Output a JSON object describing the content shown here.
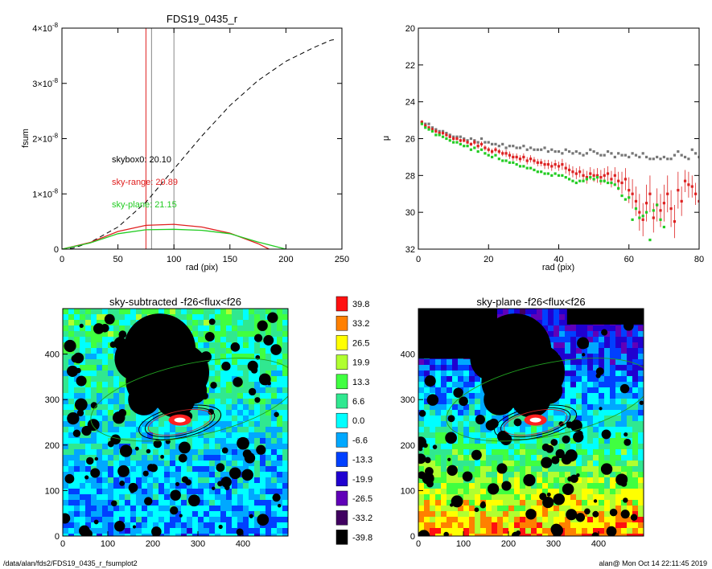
{
  "chart_data": [
    {
      "type": "line",
      "title": "FDS19_0435_r",
      "xlabel": "rad (pix)",
      "ylabel": "fsum",
      "xlim": [
        0,
        250
      ],
      "ylim": [
        0,
        4e-08
      ],
      "xticks": [
        "0",
        "50",
        "100",
        "150",
        "200",
        "250"
      ],
      "yticks": [
        {
          "mant": "0",
          "exp": ""
        },
        {
          "mant": "1×10",
          "exp": "-8"
        },
        {
          "mant": "2×10",
          "exp": "-8"
        },
        {
          "mant": "3×10",
          "exp": "-8"
        },
        {
          "mant": "4×10",
          "exp": "-8"
        }
      ],
      "vlines": [
        {
          "x": 75,
          "color": "#e02020"
        },
        {
          "x": 80,
          "color": "#888888"
        },
        {
          "x": 100,
          "color": "#888888"
        }
      ],
      "annotations": [
        {
          "text": "skybox0: 20.10",
          "color": "#000000"
        },
        {
          "text": "sky-range: 20.89",
          "color": "#e02020"
        },
        {
          "text": "sky-plane: 21.15",
          "color": "#22cc22"
        }
      ],
      "series": [
        {
          "style": "dashed",
          "color": "#000000",
          "x": [
            0,
            10,
            25,
            50,
            75,
            100,
            125,
            150,
            175,
            200,
            225,
            240,
            245
          ],
          "y": [
            0,
            1.8e-10,
            1.2e-09,
            4e-09,
            8.5e-09,
            1.45e-08,
            2.05e-08,
            2.6e-08,
            3.05e-08,
            3.4e-08,
            3.65e-08,
            3.78e-08,
            3.8e-08
          ]
        },
        {
          "style": "solid",
          "color": "#e02020",
          "x": [
            0,
            25,
            50,
            75,
            100,
            125,
            150,
            175,
            185
          ],
          "y": [
            0,
            1.2e-09,
            3.2e-09,
            4.3e-09,
            4.5e-09,
            4e-09,
            2.9e-09,
            1e-09,
            0
          ]
        },
        {
          "style": "solid",
          "color": "#22cc22",
          "x": [
            0,
            25,
            50,
            75,
            100,
            125,
            150,
            175,
            200
          ],
          "y": [
            0,
            1.1e-09,
            2.8e-09,
            3.5e-09,
            3.6e-09,
            3.4e-09,
            2.8e-09,
            1.3e-09,
            0
          ]
        }
      ]
    },
    {
      "type": "scatter",
      "xlabel": "rad (pix)",
      "ylabel": "μ",
      "xlim": [
        0,
        80
      ],
      "ylim": [
        32,
        20
      ],
      "xticks": [
        "0",
        "20",
        "40",
        "60",
        "80"
      ],
      "yticks": [
        "20",
        "22",
        "24",
        "26",
        "28",
        "30",
        "32"
      ],
      "series": [
        {
          "color": "#777777",
          "x": [
            1,
            2,
            3,
            4,
            5,
            6,
            7,
            8,
            9,
            10,
            11,
            12,
            13,
            14,
            15,
            16,
            17,
            18,
            19,
            20,
            21,
            22,
            23,
            24,
            25,
            26,
            27,
            28,
            29,
            30,
            31,
            32,
            33,
            34,
            35,
            36,
            37,
            38,
            39,
            40,
            41,
            42,
            43,
            44,
            45,
            46,
            47,
            48,
            49,
            50,
            51,
            52,
            53,
            54,
            55,
            56,
            57,
            58,
            59,
            60,
            61,
            62,
            63,
            64,
            65,
            66,
            67,
            68,
            69,
            70,
            71,
            72,
            73,
            74,
            75,
            76,
            77,
            78,
            79,
            80
          ],
          "y": [
            25.1,
            25.2,
            25.2,
            25.4,
            25.5,
            25.6,
            25.6,
            25.7,
            25.8,
            25.9,
            25.9,
            25.9,
            26.0,
            26.1,
            26.0,
            26.1,
            26.2,
            26.0,
            26.2,
            26.2,
            26.3,
            26.3,
            26.4,
            26.3,
            26.5,
            26.4,
            26.4,
            26.5,
            26.5,
            26.4,
            26.6,
            26.5,
            26.6,
            26.6,
            26.6,
            26.5,
            26.7,
            26.6,
            26.7,
            26.7,
            26.8,
            26.6,
            26.7,
            26.8,
            26.7,
            26.8,
            26.9,
            26.8,
            26.6,
            26.7,
            26.8,
            26.9,
            26.9,
            26.7,
            26.8,
            27.0,
            26.8,
            26.9,
            26.9,
            27.0,
            26.8,
            26.9,
            27.0,
            26.8,
            27.0,
            27.1,
            27.1,
            27.0,
            27.1,
            27.0,
            27.1,
            27.1,
            26.9,
            26.7,
            26.9,
            27.0,
            27.1,
            26.6,
            26.8,
            27.0
          ]
        },
        {
          "color": "#dd2222",
          "x": [
            1,
            2,
            3,
            4,
            5,
            6,
            7,
            8,
            9,
            10,
            11,
            12,
            13,
            14,
            15,
            16,
            17,
            18,
            19,
            20,
            21,
            22,
            23,
            24,
            25,
            26,
            27,
            28,
            29,
            30,
            31,
            32,
            33,
            34,
            35,
            36,
            37,
            38,
            39,
            40,
            41,
            42,
            43,
            44,
            45,
            46,
            47,
            48,
            49,
            50,
            51,
            52,
            53,
            54,
            55,
            56,
            57,
            58,
            59,
            60,
            61,
            62,
            63,
            64,
            65,
            66,
            67,
            68,
            69,
            70,
            71,
            72,
            73,
            74,
            75,
            76,
            77,
            78,
            79,
            80
          ],
          "y": [
            25.1,
            25.3,
            25.4,
            25.5,
            25.6,
            25.7,
            25.7,
            25.8,
            25.9,
            26.0,
            26.0,
            26.1,
            26.1,
            26.2,
            26.3,
            26.2,
            26.4,
            26.3,
            26.5,
            26.6,
            26.7,
            26.6,
            26.7,
            26.8,
            26.8,
            26.9,
            27.0,
            27.0,
            27.1,
            27.0,
            27.2,
            27.1,
            27.2,
            27.3,
            27.3,
            27.4,
            27.4,
            27.5,
            27.4,
            27.5,
            27.4,
            27.6,
            27.7,
            27.8,
            27.9,
            27.8,
            28.0,
            28.1,
            27.9,
            28.0,
            28.0,
            28.1,
            28.0,
            27.9,
            28.2,
            28.0,
            28.3,
            28.4,
            28.2,
            28.8,
            29.0,
            29.4,
            30.0,
            30.4,
            29.5,
            29.0,
            30.3,
            29.6,
            29.9,
            29.5,
            29.0,
            29.8,
            30.5,
            28.8,
            29.4,
            28.3,
            28.5,
            28.6,
            29.0,
            29.4
          ],
          "err": [
            0.1,
            0.1,
            0.1,
            0.1,
            0.1,
            0.1,
            0.1,
            0.1,
            0.1,
            0.1,
            0.1,
            0.1,
            0.1,
            0.1,
            0.1,
            0.15,
            0.15,
            0.15,
            0.15,
            0.15,
            0.15,
            0.15,
            0.15,
            0.15,
            0.2,
            0.2,
            0.2,
            0.2,
            0.2,
            0.2,
            0.2,
            0.2,
            0.2,
            0.2,
            0.2,
            0.25,
            0.25,
            0.25,
            0.25,
            0.25,
            0.3,
            0.3,
            0.3,
            0.3,
            0.3,
            0.3,
            0.35,
            0.35,
            0.35,
            0.35,
            0.4,
            0.4,
            0.4,
            0.4,
            0.45,
            0.45,
            0.5,
            0.6,
            0.6,
            0.7,
            0.8,
            0.8,
            1.0,
            0.9,
            1.0,
            1.0,
            0.8,
            0.9,
            0.9,
            1.0,
            1.0,
            1.0,
            0.9,
            1.0,
            0.8,
            0.6,
            0.7,
            0.6,
            0.6,
            0.7
          ]
        },
        {
          "color": "#22cc22",
          "x": [
            1,
            2,
            3,
            4,
            5,
            6,
            7,
            8,
            9,
            10,
            11,
            12,
            13,
            14,
            15,
            16,
            17,
            18,
            19,
            20,
            21,
            22,
            23,
            24,
            25,
            26,
            27,
            28,
            29,
            30,
            31,
            32,
            33,
            34,
            35,
            36,
            37,
            38,
            39,
            40,
            41,
            42,
            43,
            44,
            45,
            46,
            47,
            48,
            49,
            50,
            51,
            52,
            53,
            54,
            55,
            56,
            57,
            58,
            59,
            60,
            61,
            62,
            63,
            64,
            65,
            66,
            67,
            68,
            69,
            70
          ],
          "y": [
            25.2,
            25.4,
            25.5,
            25.6,
            25.8,
            25.8,
            25.9,
            26.0,
            26.1,
            26.2,
            26.2,
            26.3,
            26.4,
            26.4,
            26.6,
            26.5,
            26.7,
            26.6,
            26.8,
            26.9,
            27.0,
            26.9,
            27.1,
            27.2,
            27.2,
            27.3,
            27.3,
            27.4,
            27.5,
            27.5,
            27.6,
            27.6,
            27.7,
            27.8,
            27.8,
            27.9,
            27.9,
            28.0,
            27.9,
            28.0,
            28.0,
            28.1,
            28.2,
            28.3,
            28.4,
            28.3,
            28.3,
            28.2,
            28.1,
            28.2,
            28.1,
            28.3,
            28.3,
            28.4,
            28.4,
            28.5,
            28.7,
            29.1,
            29.3,
            29.2,
            30.4,
            29.8,
            30.3,
            30.2,
            30.0,
            31.5,
            29.9,
            29.6,
            30.4,
            30.8
          ]
        }
      ]
    },
    {
      "type": "heatmap",
      "title": "sky-subtracted -f26<flux<f26",
      "xlim": [
        0,
        500
      ],
      "ylim": [
        0,
        500
      ],
      "xticks": [
        "0",
        "100",
        "200",
        "300",
        "400"
      ],
      "yticks": [
        "0",
        "100",
        "200",
        "300",
        "400"
      ]
    },
    {
      "type": "heatmap",
      "title": "sky-plane -f26<flux<f26",
      "xlim": [
        0,
        500
      ],
      "ylim": [
        0,
        500
      ],
      "xticks": [
        "0",
        "100",
        "200",
        "300",
        "400"
      ],
      "yticks": [
        "0",
        "100",
        "200",
        "300",
        "400"
      ]
    }
  ],
  "colorbar": {
    "labels": [
      "39.8",
      "33.2",
      "26.5",
      "19.9",
      "13.3",
      "6.6",
      "0.0",
      "-6.6",
      "-13.3",
      "-19.9",
      "-26.5",
      "-33.2",
      "-39.8"
    ],
    "colors": [
      "#ff1010",
      "#ff8000",
      "#ffff00",
      "#b0ff30",
      "#40ff40",
      "#30e890",
      "#00ffff",
      "#00a8ff",
      "#0040ff",
      "#2000d0",
      "#6000b8",
      "#400060",
      "#000000"
    ]
  },
  "footer": {
    "path": "/data/alan/fds2/FDS19_0435_r_fsumplot2",
    "stamp": "alan@  Mon Oct 14 22:11:45 2019"
  }
}
